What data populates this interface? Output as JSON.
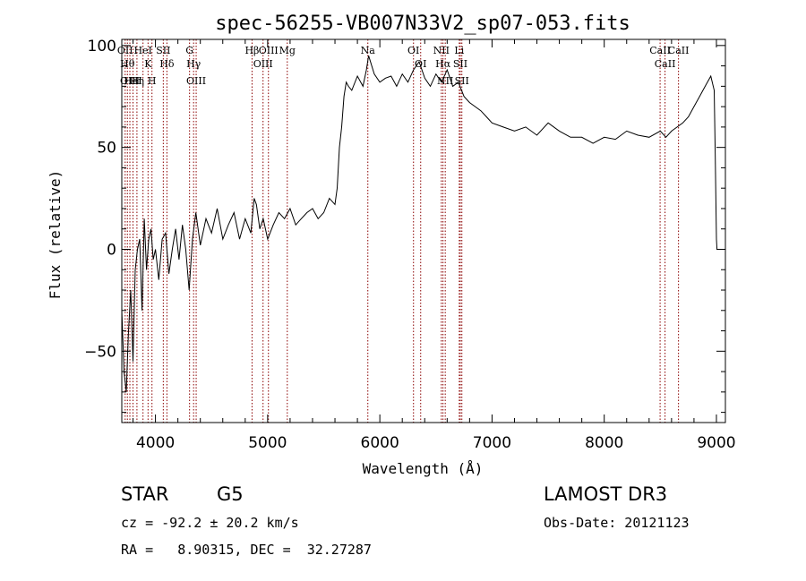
{
  "chart_data": {
    "type": "line",
    "title": "spec-56255-VB007N33V2_sp07-053.fits",
    "xlabel": "Wavelength (Å)",
    "ylabel": "Flux (relative)",
    "xlim": [
      3700,
      9080
    ],
    "ylim": [
      -85,
      103
    ],
    "xticks": [
      4000,
      5000,
      6000,
      7000,
      8000,
      9000
    ],
    "yticks": [
      -50,
      0,
      50,
      100
    ],
    "grid": false,
    "line_color": "#8b0000",
    "series": [
      {
        "name": "flux",
        "x": [
          3700,
          3720,
          3740,
          3760,
          3780,
          3800,
          3820,
          3840,
          3860,
          3880,
          3900,
          3920,
          3940,
          3960,
          3980,
          4000,
          4030,
          4060,
          4090,
          4120,
          4150,
          4180,
          4210,
          4240,
          4270,
          4300,
          4330,
          4360,
          4400,
          4450,
          4500,
          4550,
          4600,
          4650,
          4700,
          4750,
          4800,
          4850,
          4880,
          4900,
          4930,
          4960,
          5000,
          5050,
          5100,
          5150,
          5200,
          5250,
          5300,
          5350,
          5400,
          5450,
          5500,
          5550,
          5600,
          5620,
          5640,
          5660,
          5680,
          5700,
          5720,
          5750,
          5800,
          5850,
          5880,
          5900,
          5950,
          6000,
          6050,
          6100,
          6150,
          6200,
          6250,
          6300,
          6350,
          6400,
          6450,
          6500,
          6550,
          6600,
          6650,
          6700,
          6750,
          6800,
          6850,
          6900,
          6950,
          7000,
          7100,
          7200,
          7300,
          7400,
          7500,
          7600,
          7700,
          7800,
          7900,
          8000,
          8100,
          8200,
          8300,
          8400,
          8500,
          8550,
          8600,
          8650,
          8700,
          8750,
          8800,
          8850,
          8900,
          8950,
          8980,
          8990,
          9000,
          9005,
          9010
        ],
        "y": [
          -30,
          -60,
          -70,
          -40,
          -20,
          -55,
          -10,
          0,
          5,
          -30,
          15,
          -10,
          5,
          10,
          -5,
          0,
          -15,
          5,
          8,
          -12,
          0,
          10,
          -5,
          12,
          0,
          -20,
          5,
          18,
          2,
          15,
          8,
          20,
          5,
          12,
          18,
          5,
          15,
          8,
          25,
          22,
          10,
          15,
          5,
          12,
          18,
          15,
          20,
          12,
          15,
          18,
          20,
          15,
          18,
          25,
          22,
          30,
          50,
          60,
          75,
          82,
          80,
          78,
          85,
          80,
          88,
          95,
          86,
          82,
          84,
          85,
          80,
          86,
          82,
          88,
          92,
          84,
          80,
          86,
          82,
          88,
          80,
          82,
          75,
          72,
          70,
          68,
          65,
          62,
          60,
          58,
          60,
          56,
          62,
          58,
          55,
          55,
          52,
          55,
          54,
          58,
          56,
          55,
          58,
          55,
          58,
          60,
          62,
          65,
          70,
          75,
          80,
          85,
          78,
          45,
          5,
          0,
          0
        ]
      }
    ],
    "lines": [
      {
        "x": 3730,
        "label": "OII"
      },
      {
        "x": 3750,
        "label": "Hθ"
      },
      {
        "x": 3772,
        "label": "OIII"
      },
      {
        "x": 3800,
        "label": "HeI"
      },
      {
        "x": 3835,
        "label": "Hη"
      },
      {
        "x": 3889,
        "label": "HeI"
      },
      {
        "x": 3934,
        "label": "K"
      },
      {
        "x": 3969,
        "label": "H"
      },
      {
        "x": 4070,
        "label": "SII"
      },
      {
        "x": 4102,
        "label": "Hδ"
      },
      {
        "x": 4304,
        "label": "G"
      },
      {
        "x": 4340,
        "label": "Hγ"
      },
      {
        "x": 4363,
        "label": "OIII"
      },
      {
        "x": 4861,
        "label": "Hβ"
      },
      {
        "x": 4959,
        "label": "OIII"
      },
      {
        "x": 5007,
        "label": "OIII"
      },
      {
        "x": 5175,
        "label": "Mg"
      },
      {
        "x": 5893,
        "label": "Na"
      },
      {
        "x": 6300,
        "label": "OI"
      },
      {
        "x": 6364,
        "label": "OI"
      },
      {
        "x": 6548,
        "label": "NII"
      },
      {
        "x": 6563,
        "label": "Hα"
      },
      {
        "x": 6583,
        "label": "NII"
      },
      {
        "x": 6708,
        "label": "Li"
      },
      {
        "x": 6717,
        "label": "SII"
      },
      {
        "x": 6731,
        "label": "SII"
      },
      {
        "x": 8498,
        "label": "CaII"
      },
      {
        "x": 8542,
        "label": "CaII"
      },
      {
        "x": 8662,
        "label": "CaII"
      }
    ]
  },
  "info": {
    "object_class": "STAR",
    "subclass": "G5",
    "survey": "LAMOST DR3",
    "cz": "cz = -92.2 ± 20.2 km/s",
    "obs_date": "Obs-Date: 20121123",
    "radec": "RA =   8.90315, DEC =  32.27287"
  }
}
